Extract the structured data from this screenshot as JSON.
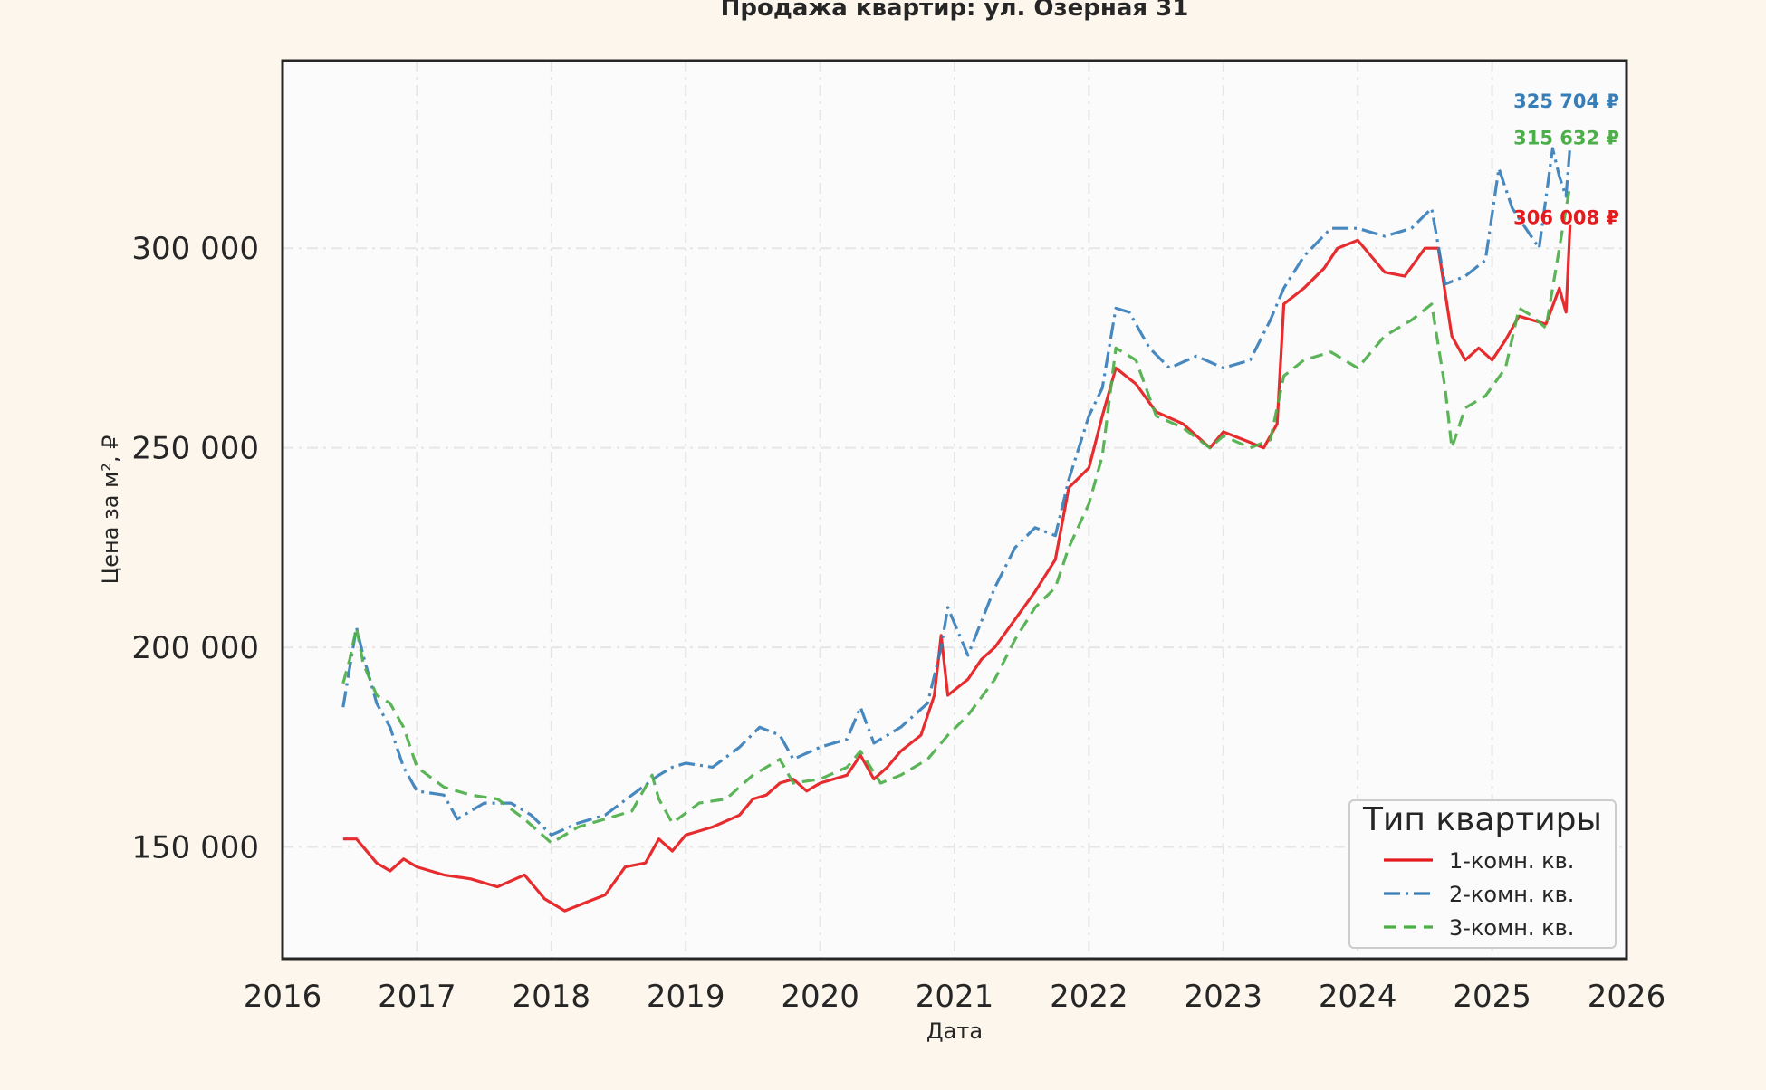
{
  "chart_data": {
    "type": "line",
    "title": "Продажа квартир: ул. Озерная 31",
    "xlabel": "Дата",
    "ylabel": "Цена за м², ₽",
    "xlim": [
      2016.0,
      2026.0
    ],
    "ylim": [
      122000,
      347000
    ],
    "x_ticks": [
      "2016",
      "2017",
      "2018",
      "2019",
      "2020",
      "2021",
      "2022",
      "2023",
      "2024",
      "2025",
      "2026"
    ],
    "y_ticks": [
      {
        "value": 150000,
        "label": "150 000"
      },
      {
        "value": 200000,
        "label": "200 000"
      },
      {
        "value": 250000,
        "label": "250 000"
      },
      {
        "value": 300000,
        "label": "300 000"
      }
    ],
    "grid": true,
    "legend": {
      "title": "Тип квартиры",
      "placement": "lower-right"
    },
    "series": [
      {
        "name": "1-комн. кв.",
        "color": "#e41a1c",
        "style": "solid",
        "end_label": "306 008 ₽",
        "x": [
          2016.45,
          2016.55,
          2016.7,
          2016.8,
          2016.9,
          2017.0,
          2017.2,
          2017.4,
          2017.6,
          2017.8,
          2017.95,
          2018.0,
          2018.1,
          2018.25,
          2018.4,
          2018.55,
          2018.7,
          2018.8,
          2018.9,
          2019.0,
          2019.2,
          2019.4,
          2019.5,
          2019.6,
          2019.7,
          2019.8,
          2019.9,
          2020.0,
          2020.2,
          2020.3,
          2020.4,
          2020.5,
          2020.6,
          2020.75,
          2020.85,
          2020.9,
          2020.95,
          2021.1,
          2021.2,
          2021.3,
          2021.45,
          2021.6,
          2021.75,
          2021.85,
          2022.0,
          2022.1,
          2022.2,
          2022.35,
          2022.5,
          2022.7,
          2022.9,
          2023.0,
          2023.15,
          2023.3,
          2023.4,
          2023.45,
          2023.6,
          2023.75,
          2023.85,
          2024.0,
          2024.2,
          2024.35,
          2024.5,
          2024.6,
          2024.7,
          2024.8,
          2024.9,
          2025.0,
          2025.1,
          2025.2,
          2025.3,
          2025.4,
          2025.5,
          2025.55,
          2025.58
        ],
        "values": [
          152000,
          152000,
          146000,
          144000,
          147000,
          145000,
          143000,
          142000,
          140000,
          143000,
          137000,
          136000,
          134000,
          136000,
          138000,
          145000,
          146000,
          152000,
          149000,
          153000,
          155000,
          158000,
          162000,
          163000,
          166000,
          167000,
          164000,
          166000,
          168000,
          173000,
          167000,
          170000,
          174000,
          178000,
          188000,
          203000,
          188000,
          192000,
          197000,
          200000,
          207000,
          214000,
          222000,
          240000,
          245000,
          258000,
          270000,
          266000,
          259000,
          256000,
          250000,
          254000,
          252000,
          250000,
          256000,
          286000,
          290000,
          295000,
          300000,
          302000,
          294000,
          293000,
          300000,
          300000,
          278000,
          272000,
          275000,
          272000,
          277000,
          283000,
          282000,
          281000,
          290000,
          284000,
          306008
        ]
      },
      {
        "name": "2-комн. кв.",
        "color": "#377eb8",
        "style": "dashdot",
        "end_label": "325 704 ₽",
        "x": [
          2016.45,
          2016.5,
          2016.55,
          2016.6,
          2016.7,
          2016.8,
          2016.9,
          2017.0,
          2017.2,
          2017.3,
          2017.5,
          2017.7,
          2017.85,
          2018.0,
          2018.2,
          2018.4,
          2018.6,
          2018.8,
          2018.9,
          2019.0,
          2019.2,
          2019.4,
          2019.55,
          2019.7,
          2019.8,
          2020.0,
          2020.2,
          2020.3,
          2020.4,
          2020.6,
          2020.8,
          2020.9,
          2020.95,
          2021.1,
          2021.3,
          2021.45,
          2021.6,
          2021.75,
          2021.85,
          2022.0,
          2022.1,
          2022.2,
          2022.3,
          2022.45,
          2022.6,
          2022.8,
          2023.0,
          2023.2,
          2023.35,
          2023.45,
          2023.6,
          2023.8,
          2024.0,
          2024.2,
          2024.4,
          2024.55,
          2024.65,
          2024.8,
          2024.95,
          2025.05,
          2025.15,
          2025.25,
          2025.35,
          2025.45,
          2025.5,
          2025.55,
          2025.58
        ],
        "values": [
          185000,
          195000,
          205000,
          198000,
          186000,
          180000,
          170000,
          164000,
          163000,
          157000,
          161000,
          161000,
          158000,
          153000,
          156000,
          158000,
          163000,
          168000,
          170000,
          171000,
          170000,
          175000,
          180000,
          178000,
          172000,
          175000,
          177000,
          185000,
          176000,
          180000,
          186000,
          200000,
          210000,
          198000,
          215000,
          225000,
          230000,
          228000,
          242000,
          258000,
          265000,
          285000,
          284000,
          275000,
          270000,
          273000,
          270000,
          272000,
          282000,
          290000,
          298000,
          305000,
          305000,
          303000,
          305000,
          310000,
          291000,
          293000,
          297000,
          320000,
          310000,
          305000,
          300000,
          325000,
          318000,
          313000,
          325704
        ]
      },
      {
        "name": "3-комн. кв.",
        "color": "#4daf4a",
        "style": "dashed",
        "end_label": "315 632 ₽",
        "x": [
          2016.45,
          2016.5,
          2016.55,
          2016.6,
          2016.7,
          2016.8,
          2016.9,
          2017.0,
          2017.2,
          2017.4,
          2017.6,
          2017.8,
          2018.0,
          2018.2,
          2018.4,
          2018.6,
          2018.75,
          2018.8,
          2018.9,
          2019.1,
          2019.3,
          2019.5,
          2019.7,
          2019.8,
          2020.0,
          2020.2,
          2020.3,
          2020.45,
          2020.6,
          2020.8,
          2020.95,
          2021.1,
          2021.3,
          2021.45,
          2021.6,
          2021.75,
          2021.85,
          2022.0,
          2022.1,
          2022.2,
          2022.35,
          2022.5,
          2022.7,
          2022.9,
          2023.0,
          2023.2,
          2023.35,
          2023.45,
          2023.6,
          2023.8,
          2024.0,
          2024.2,
          2024.4,
          2024.55,
          2024.65,
          2024.7,
          2024.8,
          2024.95,
          2025.1,
          2025.2,
          2025.3,
          2025.4,
          2025.5,
          2025.55,
          2025.58
        ],
        "values": [
          191000,
          197000,
          205000,
          196000,
          188000,
          186000,
          180000,
          170000,
          165000,
          163000,
          162000,
          157000,
          151000,
          155000,
          157000,
          159000,
          168000,
          162000,
          156000,
          161000,
          162000,
          168000,
          172000,
          166000,
          167000,
          170000,
          174000,
          166000,
          168000,
          172000,
          178000,
          183000,
          192000,
          202000,
          210000,
          215000,
          225000,
          236000,
          248000,
          275000,
          272000,
          258000,
          255000,
          250000,
          253000,
          250000,
          252000,
          268000,
          272000,
          274000,
          270000,
          278000,
          282000,
          286000,
          265000,
          250000,
          260000,
          263000,
          270000,
          285000,
          283000,
          280000,
          300000,
          310000,
          315632
        ]
      }
    ]
  }
}
